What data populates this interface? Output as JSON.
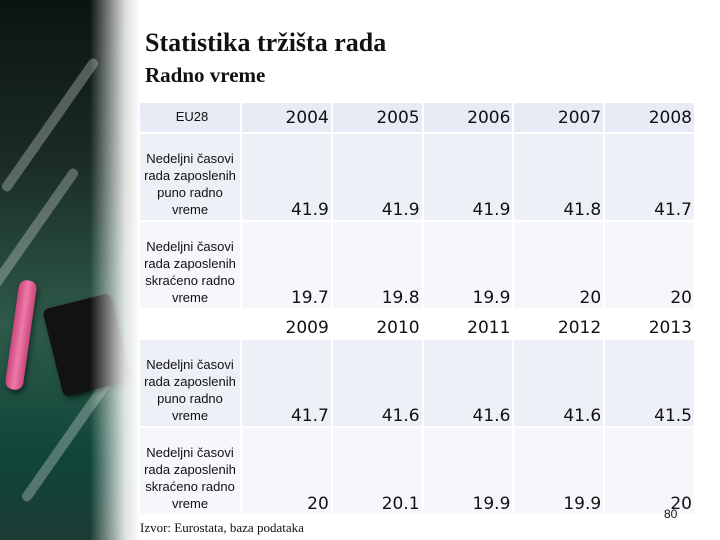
{
  "slide": {
    "title": "Statistika tržišta rada",
    "subtitle": "Radno vreme",
    "source": "Izvor: Eurostata, baza podataka",
    "page_number": "80"
  },
  "table": {
    "corner_label": "EU28",
    "row_labels": {
      "full_time": "Nedeljni časovi rada zaposlenih puno radno vreme",
      "part_time": "Nedeljni časovi rada zaposlenih skraćeno radno vreme"
    },
    "block1": {
      "years": [
        "2004",
        "2005",
        "2006",
        "2007",
        "2008"
      ],
      "full_time": [
        "41.9",
        "41.9",
        "41.9",
        "41.8",
        "41.7"
      ],
      "part_time": [
        "19.7",
        "19.8",
        "19.9",
        "20",
        "20"
      ]
    },
    "block2": {
      "years": [
        "2009",
        "2010",
        "2011",
        "2012",
        "2013"
      ],
      "full_time": [
        "41.7",
        "41.6",
        "41.6",
        "41.6",
        "41.5"
      ],
      "part_time": [
        "20",
        "20.1",
        "19.9",
        "19.9",
        "20"
      ]
    }
  }
}
